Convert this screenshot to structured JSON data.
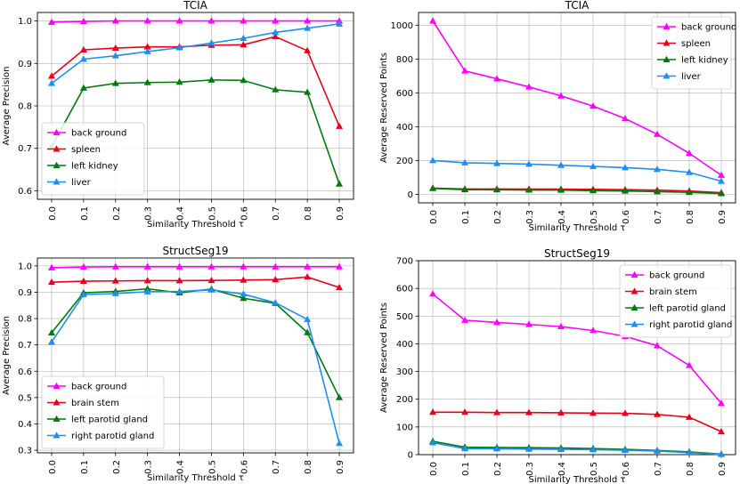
{
  "chart_data": [
    {
      "type": "line",
      "title": "TCIA",
      "xlabel": "Similarity Threshold τ",
      "ylabel": "Average Precision",
      "x": [
        0.0,
        0.1,
        0.2,
        0.3,
        0.4,
        0.5,
        0.6,
        0.7,
        0.8,
        0.9
      ],
      "x_tick_labels": [
        "0.0",
        "0.1",
        "0.2",
        "0.3",
        "0.4",
        "0.5",
        "0.6",
        "0.7",
        "0.8",
        "0.9"
      ],
      "ylim": [
        0.58,
        1.02
      ],
      "y_ticks": [
        0.6,
        0.7,
        0.8,
        0.9,
        1.0
      ],
      "y_tick_labels": [
        "0.6",
        "0.7",
        "0.8",
        "0.9",
        "1.0"
      ],
      "grid": true,
      "legend_position": "lower-left",
      "series": [
        {
          "name": "back ground",
          "color": "#ff00ff",
          "values": [
            0.997,
            0.999,
            1.0,
            1.0,
            1.0,
            1.0,
            1.0,
            1.0,
            1.0,
            1.0
          ]
        },
        {
          "name": "spleen",
          "color": "#e8001c",
          "values": [
            0.87,
            0.932,
            0.936,
            0.939,
            0.939,
            0.943,
            0.944,
            0.963,
            0.93,
            0.752
          ]
        },
        {
          "name": "left kidney",
          "color": "#007a0e",
          "values": [
            0.704,
            0.842,
            0.853,
            0.855,
            0.856,
            0.861,
            0.86,
            0.838,
            0.832,
            0.616
          ]
        },
        {
          "name": "liver",
          "color": "#1e8ff0",
          "values": [
            0.853,
            0.91,
            0.918,
            0.928,
            0.937,
            0.948,
            0.959,
            0.973,
            0.983,
            0.993
          ]
        }
      ]
    },
    {
      "type": "line",
      "title": "TCIA",
      "xlabel": "Similarity Threshold τ",
      "ylabel": "Average Reserved Points",
      "x": [
        0.0,
        0.1,
        0.2,
        0.3,
        0.4,
        0.5,
        0.6,
        0.7,
        0.8,
        0.9
      ],
      "x_tick_labels": [
        "0.0",
        "0.1",
        "0.2",
        "0.3",
        "0.4",
        "0.5",
        "0.6",
        "0.7",
        "0.8",
        "0.9"
      ],
      "ylim": [
        -50,
        1075
      ],
      "y_ticks": [
        0,
        200,
        400,
        600,
        800,
        1000
      ],
      "y_tick_labels": [
        "0",
        "200",
        "400",
        "600",
        "800",
        "1000"
      ],
      "grid": true,
      "legend_position": "top-right",
      "series": [
        {
          "name": "back ground",
          "color": "#ff00ff",
          "values": [
            1025,
            730,
            683,
            635,
            582,
            522,
            448,
            355,
            243,
            113
          ]
        },
        {
          "name": "spleen",
          "color": "#e8001c",
          "values": [
            37,
            32,
            32,
            31,
            31,
            30,
            28,
            25,
            20,
            10
          ]
        },
        {
          "name": "left kidney",
          "color": "#007a0e",
          "values": [
            35,
            28,
            27,
            26,
            25,
            22,
            20,
            16,
            12,
            5
          ]
        },
        {
          "name": "liver",
          "color": "#1e8ff0",
          "values": [
            200,
            187,
            183,
            179,
            172,
            165,
            158,
            148,
            130,
            78
          ]
        }
      ]
    },
    {
      "type": "line",
      "title": "StructSeg19",
      "xlabel": "Similarity Threshold τ",
      "ylabel": "Average Precision",
      "x": [
        0.0,
        0.1,
        0.2,
        0.3,
        0.4,
        0.5,
        0.6,
        0.7,
        0.8,
        0.9
      ],
      "x_tick_labels": [
        "0.0",
        "0.1",
        "0.2",
        "0.3",
        "0.4",
        "0.5",
        "0.6",
        "0.7",
        "0.8",
        "0.9"
      ],
      "ylim": [
        0.29,
        1.03
      ],
      "y_ticks": [
        0.3,
        0.4,
        0.5,
        0.6,
        0.7,
        0.8,
        0.9,
        1.0
      ],
      "y_tick_labels": [
        "0.3",
        "0.4",
        "0.5",
        "0.6",
        "0.7",
        "0.8",
        "0.9",
        "1.0"
      ],
      "grid": true,
      "legend_position": "lower-left",
      "series": [
        {
          "name": "back ground",
          "color": "#ff00ff",
          "values": [
            0.993,
            0.996,
            0.997,
            0.997,
            0.997,
            0.997,
            0.997,
            0.997,
            0.997,
            0.997
          ]
        },
        {
          "name": "brain stem",
          "color": "#e8001c",
          "values": [
            0.938,
            0.942,
            0.943,
            0.944,
            0.944,
            0.945,
            0.946,
            0.948,
            0.958,
            0.918
          ]
        },
        {
          "name": "left parotid gland",
          "color": "#007a0e",
          "values": [
            0.746,
            0.898,
            0.903,
            0.913,
            0.898,
            0.912,
            0.877,
            0.858,
            0.747,
            0.5
          ]
        },
        {
          "name": "right parotid gland",
          "color": "#1e8ff0",
          "values": [
            0.711,
            0.891,
            0.895,
            0.902,
            0.903,
            0.909,
            0.893,
            0.86,
            0.797,
            0.326
          ]
        }
      ]
    },
    {
      "type": "line",
      "title": "StructSeg19",
      "xlabel": "Similarity Threshold τ",
      "ylabel": "Average Reserved Points",
      "x": [
        0.0,
        0.1,
        0.2,
        0.3,
        0.4,
        0.5,
        0.6,
        0.7,
        0.8,
        0.9
      ],
      "x_tick_labels": [
        "0.0",
        "0.1",
        "0.2",
        "0.3",
        "0.4",
        "0.5",
        "0.6",
        "0.7",
        "0.8",
        "0.9"
      ],
      "ylim": [
        0,
        700
      ],
      "y_ticks": [
        0,
        100,
        200,
        300,
        400,
        500,
        600,
        700
      ],
      "y_tick_labels": [
        "0",
        "100",
        "200",
        "300",
        "400",
        "500",
        "600",
        "700"
      ],
      "grid": true,
      "legend_position": "top-right",
      "series": [
        {
          "name": "back ground",
          "color": "#ff00ff",
          "values": [
            580,
            485,
            477,
            470,
            462,
            448,
            427,
            393,
            322,
            185
          ]
        },
        {
          "name": "brain stem",
          "color": "#e8001c",
          "values": [
            153,
            153,
            152,
            152,
            151,
            150,
            149,
            145,
            135,
            83
          ]
        },
        {
          "name": "left parotid gland",
          "color": "#007a0e",
          "values": [
            48,
            27,
            26,
            25,
            24,
            22,
            19,
            15,
            10,
            2
          ]
        },
        {
          "name": "right parotid gland",
          "color": "#1e8ff0",
          "values": [
            43,
            22,
            21,
            20,
            19,
            18,
            16,
            13,
            7,
            1
          ]
        }
      ]
    }
  ]
}
